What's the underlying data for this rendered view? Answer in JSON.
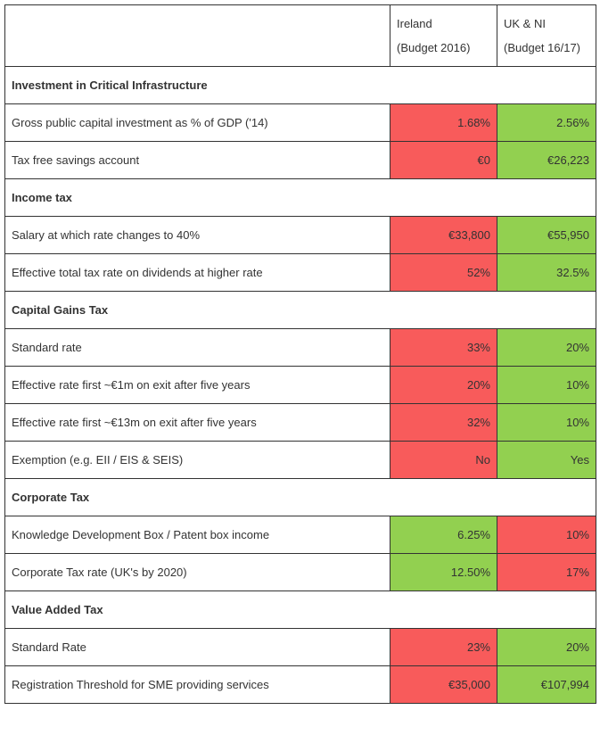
{
  "header": {
    "columns": [
      [
        "Ireland",
        "(Budget 2016)"
      ],
      [
        "UK & NI",
        "(Budget 16/17)"
      ]
    ]
  },
  "colors": {
    "red": "#f85b5b",
    "green": "#92d050"
  },
  "table": {
    "rows": [
      {
        "section": "Investment in Critical Infrastructure"
      },
      {
        "label": "Gross public capital investment as % of GDP ('14)",
        "cells": [
          {
            "text": "1.68%",
            "color": "red"
          },
          {
            "text": "2.56%",
            "color": "green"
          }
        ]
      },
      {
        "label": "Tax free savings account",
        "cells": [
          {
            "text": "€0",
            "color": "red"
          },
          {
            "text": "€26,223",
            "color": "green"
          }
        ]
      },
      {
        "section": "Income tax"
      },
      {
        "label": "Salary at which rate changes to 40%",
        "cells": [
          {
            "text": "€33,800",
            "color": "red"
          },
          {
            "text": "€55,950",
            "color": "green"
          }
        ]
      },
      {
        "label": "Effective total tax rate on dividends at higher rate",
        "cells": [
          {
            "text": "52%",
            "color": "red"
          },
          {
            "text": "32.5%",
            "color": "green"
          }
        ]
      },
      {
        "section": "Capital Gains Tax"
      },
      {
        "label": "Standard rate",
        "cells": [
          {
            "text": "33%",
            "color": "red"
          },
          {
            "text": "20%",
            "color": "green"
          }
        ]
      },
      {
        "label": "Effective rate first ~€1m on exit after five years",
        "cells": [
          {
            "text": "20%",
            "color": "red"
          },
          {
            "text": "10%",
            "color": "green"
          }
        ]
      },
      {
        "label": "Effective rate first ~€13m on exit after five years",
        "cells": [
          {
            "text": "32%",
            "color": "red"
          },
          {
            "text": "10%",
            "color": "green"
          }
        ]
      },
      {
        "label": "Exemption (e.g. EII / EIS & SEIS)",
        "cells": [
          {
            "text": "No",
            "color": "red"
          },
          {
            "text": "Yes",
            "color": "green"
          }
        ]
      },
      {
        "section": "Corporate Tax"
      },
      {
        "label": "Knowledge Development Box / Patent box income",
        "cells": [
          {
            "text": "6.25%",
            "color": "green"
          },
          {
            "text": "10%",
            "color": "red"
          }
        ]
      },
      {
        "label": "Corporate Tax rate (UK's by 2020)",
        "cells": [
          {
            "text": "12.50%",
            "color": "green"
          },
          {
            "text": "17%",
            "color": "red"
          }
        ]
      },
      {
        "section": "Value Added Tax"
      },
      {
        "label": "Standard Rate",
        "cells": [
          {
            "text": "23%",
            "color": "red"
          },
          {
            "text": "20%",
            "color": "green"
          }
        ]
      },
      {
        "label": "Registration Threshold for SME providing services",
        "cells": [
          {
            "text": "€35,000",
            "color": "red"
          },
          {
            "text": "€107,994",
            "color": "green"
          }
        ]
      }
    ]
  }
}
